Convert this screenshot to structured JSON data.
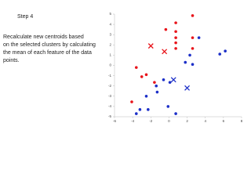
{
  "slide": {
    "title": "Step 4",
    "body": [
      "Recalculate new centroids based",
      "on the selected clusters by calculating",
      "the mean of each feature of the data",
      " points."
    ]
  },
  "chart_data": {
    "type": "scatter",
    "xlim": [
      -6,
      8
    ],
    "xticks": [
      -6,
      -4,
      -2,
      0,
      2,
      4,
      6,
      8
    ],
    "ylim": [
      -5,
      5
    ],
    "yticks": [
      -5,
      -4,
      -3,
      -2,
      -1,
      0,
      1,
      2,
      3,
      4,
      5
    ],
    "series": [
      {
        "color": "#e8141b",
        "marker": "dot",
        "x": [
          2.6,
          0.75,
          -0.35,
          0.75,
          0.75,
          2.6,
          0.75,
          0.75,
          2.6,
          -3.6,
          -2.5,
          -3,
          -1.6,
          -4.1
        ],
        "y": [
          4.85,
          4.15,
          3.5,
          3.3,
          2.7,
          2.7,
          2.2,
          1.65,
          1.65,
          -0.2,
          -0.9,
          -1.1,
          -1.65,
          -3.55
        ]
      },
      {
        "color": "#1c2fc8",
        "marker": "dot",
        "x": [
          3.3,
          2.3,
          1.8,
          2.6,
          6.2,
          5.6,
          -0.6,
          -1.4,
          0.1,
          -1.3,
          -2.5,
          -0.1,
          -3.2,
          -2.3,
          -3.6,
          0.75
        ],
        "y": [
          2.7,
          1.0,
          0.3,
          0.1,
          1.4,
          1.1,
          -1.4,
          -2.0,
          -1.65,
          -2.6,
          -3.0,
          -4.0,
          -4.3,
          -4.3,
          -4.7,
          -4.7
        ]
      },
      {
        "color": "#e8141b",
        "marker": "x",
        "x": [
          -2,
          -0.5
        ],
        "y": [
          1.9,
          1.35
        ]
      },
      {
        "color": "#1c2fc8",
        "marker": "x",
        "x": [
          0.5,
          2
        ],
        "y": [
          -1.4,
          -2.2
        ]
      }
    ]
  }
}
